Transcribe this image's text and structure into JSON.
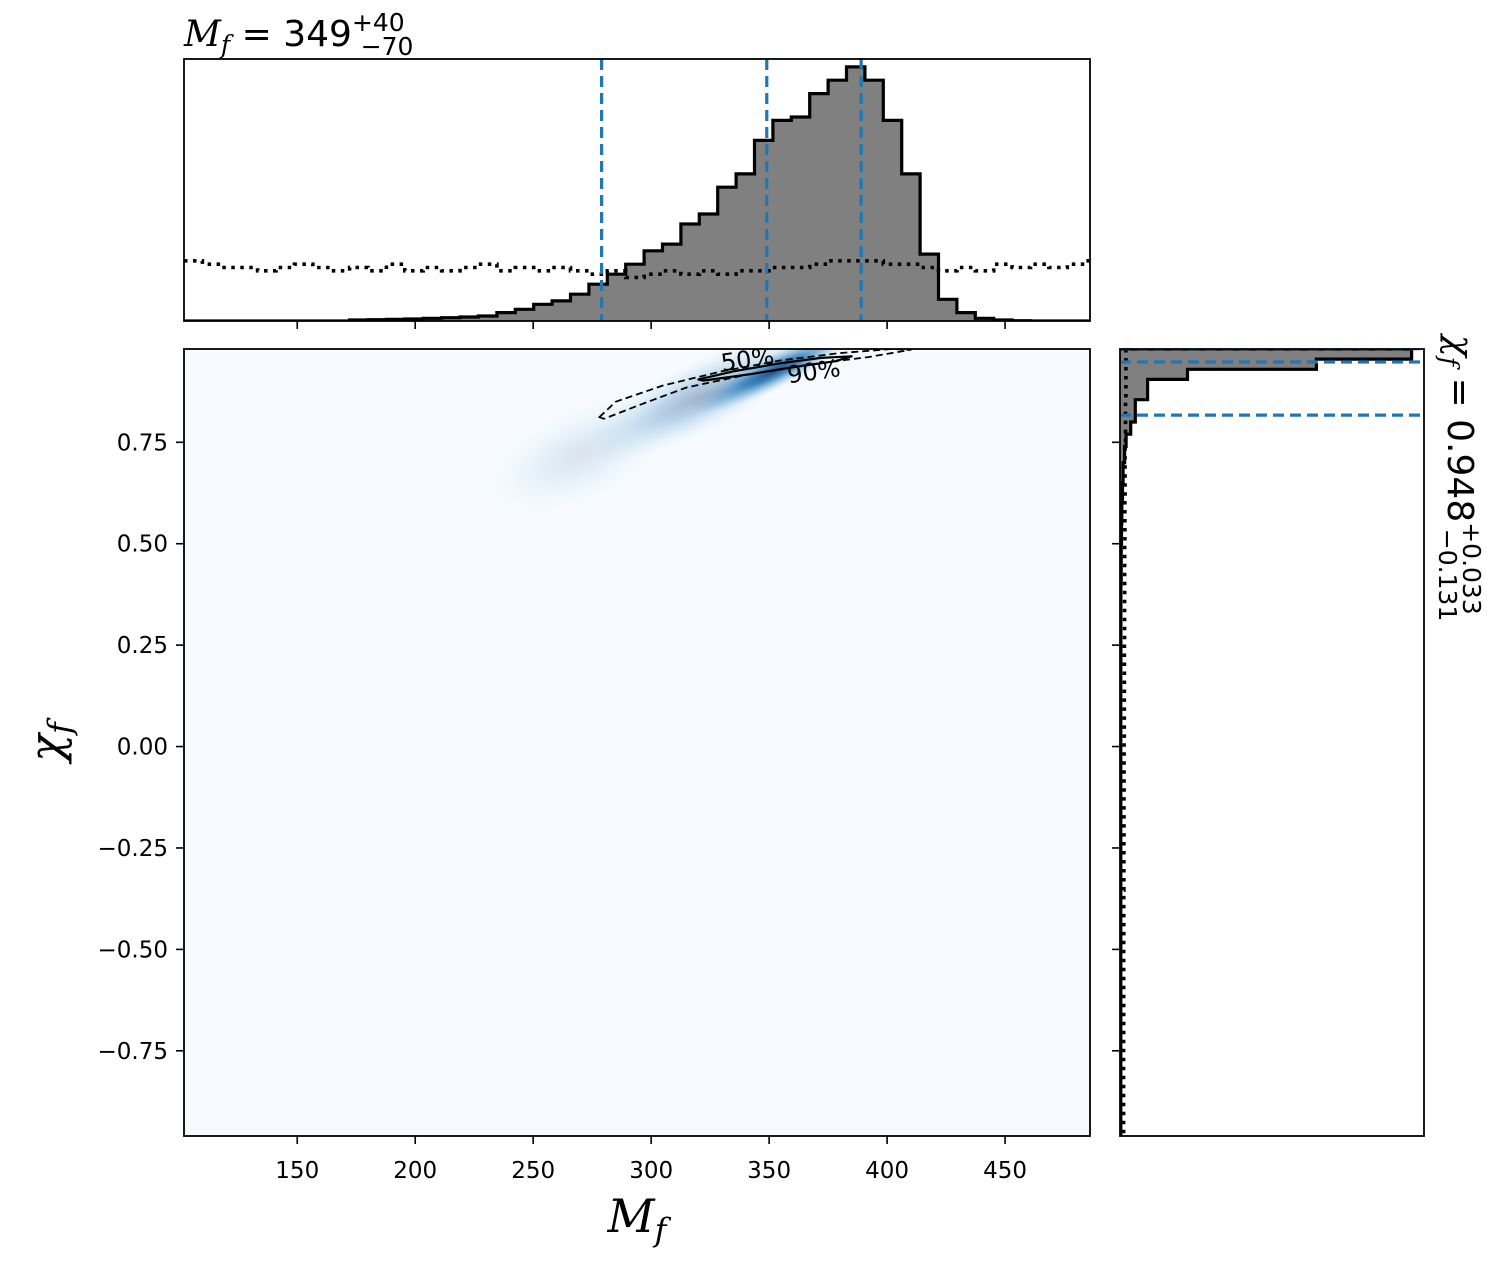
{
  "chart_data": {
    "type": "corner-plot",
    "top_title": {
      "symbol": "M",
      "subscript": "f",
      "equals": "=",
      "median": "349",
      "plus": "+40",
      "minus": "−70"
    },
    "right_title": {
      "symbol": "χ",
      "subscript": "f",
      "equals": "=",
      "median": "0.948",
      "plus": "+0.033",
      "minus": "−0.131"
    },
    "xlabel": {
      "symbol": "M",
      "subscript": "f"
    },
    "ylabel": {
      "symbol": "χ",
      "subscript": "f"
    },
    "xlim": [
      102,
      486
    ],
    "ylim": [
      -0.96,
      0.98
    ],
    "xticks": [
      150,
      200,
      250,
      300,
      350,
      400,
      450
    ],
    "xtick_labels": [
      "150",
      "200",
      "250",
      "300",
      "350",
      "400",
      "450"
    ],
    "yticks": [
      0.75,
      0.5,
      0.25,
      0.0,
      -0.25,
      -0.5,
      -0.75
    ],
    "ytick_labels": [
      "0.75",
      "0.50",
      "0.25",
      "0.00",
      "−0.25",
      "−0.50",
      "−0.75"
    ],
    "mass_quantiles": [
      279,
      349,
      389
    ],
    "spin_quantiles": [
      0.817,
      0.948,
      0.981
    ],
    "mass_hist": {
      "bin_start": 102,
      "bin_width": 7.8,
      "posterior": [
        0,
        0,
        0,
        0,
        0,
        0,
        0,
        0,
        0,
        0.003,
        0.004,
        0.005,
        0.006,
        0.008,
        0.01,
        0.012,
        0.015,
        0.025,
        0.035,
        0.05,
        0.06,
        0.08,
        0.11,
        0.14,
        0.17,
        0.21,
        0.23,
        0.29,
        0.32,
        0.4,
        0.44,
        0.54,
        0.6,
        0.61,
        0.68,
        0.72,
        0.76,
        0.72,
        0.6,
        0.44,
        0.2,
        0.065,
        0.025,
        0.008,
        0.003,
        0.001,
        0,
        0,
        0,
        0
      ],
      "prior": [
        0.18,
        0.17,
        0.16,
        0.16,
        0.15,
        0.16,
        0.17,
        0.16,
        0.15,
        0.16,
        0.15,
        0.17,
        0.15,
        0.16,
        0.15,
        0.16,
        0.17,
        0.15,
        0.16,
        0.15,
        0.16,
        0.15,
        0.14,
        0.15,
        0.13,
        0.14,
        0.15,
        0.14,
        0.15,
        0.14,
        0.15,
        0.15,
        0.16,
        0.16,
        0.17,
        0.18,
        0.18,
        0.18,
        0.17,
        0.17,
        0.16,
        0.15,
        0.16,
        0.15,
        0.17,
        0.16,
        0.17,
        0.16,
        0.17,
        0.18
      ]
    },
    "spin_hist": {
      "edges": [
        0.98,
        0.955,
        0.93,
        0.905,
        0.88,
        0.855,
        0.83,
        0.8,
        0.77,
        0.74,
        0.7,
        0.65,
        0.6,
        0.55,
        0.5,
        0.4,
        0.3,
        0.2,
        -0.96
      ],
      "posterior": [
        0.95,
        0.64,
        0.22,
        0.09,
        0.09,
        0.05,
        0.05,
        0.035,
        0.02,
        0.015,
        0.01,
        0.008,
        0.006,
        0.005,
        0.004,
        0.003,
        0.003,
        0.0025
      ],
      "prior_x": [
        0.055,
        0.052,
        0.048,
        0.046,
        0.044,
        0.043,
        0.041,
        0.04,
        0.039,
        0.038,
        0.037,
        0.036,
        0.035,
        0.035,
        0.034,
        0.034
      ]
    },
    "contours": [
      {
        "level": "50%",
        "label": "50%",
        "style": "solid",
        "points": [
          [
            320,
            0.905
          ],
          [
            335,
            0.925
          ],
          [
            355,
            0.945
          ],
          [
            372,
            0.958
          ],
          [
            385,
            0.962
          ],
          [
            378,
            0.95
          ],
          [
            360,
            0.935
          ],
          [
            342,
            0.918
          ],
          [
            322,
            0.902
          ]
        ]
      },
      {
        "level": "90%",
        "label": "90%",
        "style": "dashed",
        "points": [
          [
            278,
            0.812
          ],
          [
            285,
            0.85
          ],
          [
            305,
            0.89
          ],
          [
            330,
            0.925
          ],
          [
            355,
            0.952
          ],
          [
            380,
            0.97
          ],
          [
            402,
            0.98
          ],
          [
            410,
            0.978
          ],
          [
            392,
            0.96
          ],
          [
            365,
            0.94
          ],
          [
            340,
            0.916
          ],
          [
            315,
            0.885
          ],
          [
            295,
            0.842
          ],
          [
            280,
            0.808
          ]
        ]
      }
    ],
    "density_blobs": [
      {
        "center": [
          352,
          0.925
        ],
        "spread": [
          40,
          0.045
        ],
        "slope": 0.0028,
        "opacity": 0.95
      },
      {
        "center": [
          320,
          0.86
        ],
        "spread": [
          55,
          0.09
        ],
        "slope": 0.0028,
        "opacity": 0.35
      },
      {
        "center": [
          270,
          0.72
        ],
        "spread": [
          45,
          0.12
        ],
        "slope": 0.0028,
        "opacity": 0.12
      }
    ],
    "colors": {
      "posterior_fill": "#808080",
      "quantile_line": "#1f77b4",
      "density_bg": "#f7fbff",
      "density_peak": "#08306b",
      "density_mid": "#4a90c8"
    }
  }
}
